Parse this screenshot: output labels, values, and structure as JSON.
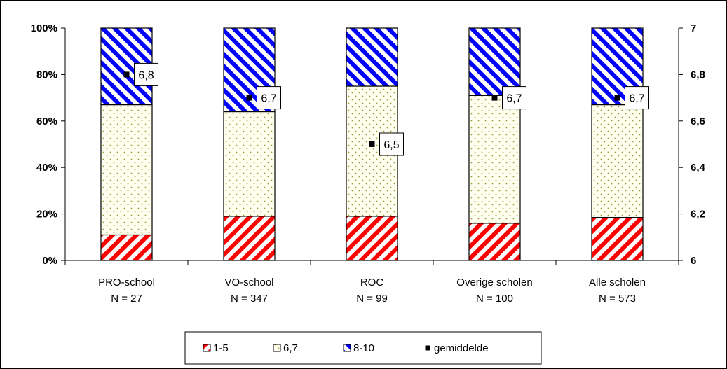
{
  "chart_data": {
    "type": "bar",
    "stacked": "percent",
    "title": "",
    "categories": [
      "PRO-school",
      "VO-school",
      "ROC",
      "Overige scholen",
      "Alle scholen"
    ],
    "category_counts": [
      "N = 27",
      "N = 347",
      "N = 99",
      "N = 100",
      "N = 573"
    ],
    "series": [
      {
        "name": "1-5",
        "values": [
          11,
          19,
          19,
          16,
          18.5
        ],
        "color": "#ff0000",
        "pattern": "diagonal-stripes"
      },
      {
        "name": "6,7",
        "values": [
          56,
          45,
          56,
          55,
          48.5
        ],
        "color": "#999933",
        "pattern": "dots"
      },
      {
        "name": "8-10",
        "values": [
          33,
          36,
          25,
          29,
          33
        ],
        "color": "#0000ff",
        "pattern": "diagonal-stripes"
      }
    ],
    "mean": {
      "name": "gemiddelde",
      "values": [
        6.8,
        6.7,
        6.5,
        6.7,
        6.7
      ],
      "labels": [
        "6,8",
        "6,7",
        "6,5",
        "6,7",
        "6,7"
      ]
    },
    "y_left": {
      "ylim": [
        0,
        100
      ],
      "ticks": [
        "0%",
        "20%",
        "40%",
        "60%",
        "80%",
        "100%"
      ]
    },
    "y_right": {
      "ylim": [
        6,
        7
      ],
      "ticks": [
        "6",
        "6,2",
        "6,4",
        "6,6",
        "6,8",
        "7"
      ]
    },
    "legend": {
      "placement": "bottom",
      "entries": [
        "1-5",
        "6,7",
        "8-10",
        "gemiddelde"
      ]
    },
    "grid": false
  }
}
